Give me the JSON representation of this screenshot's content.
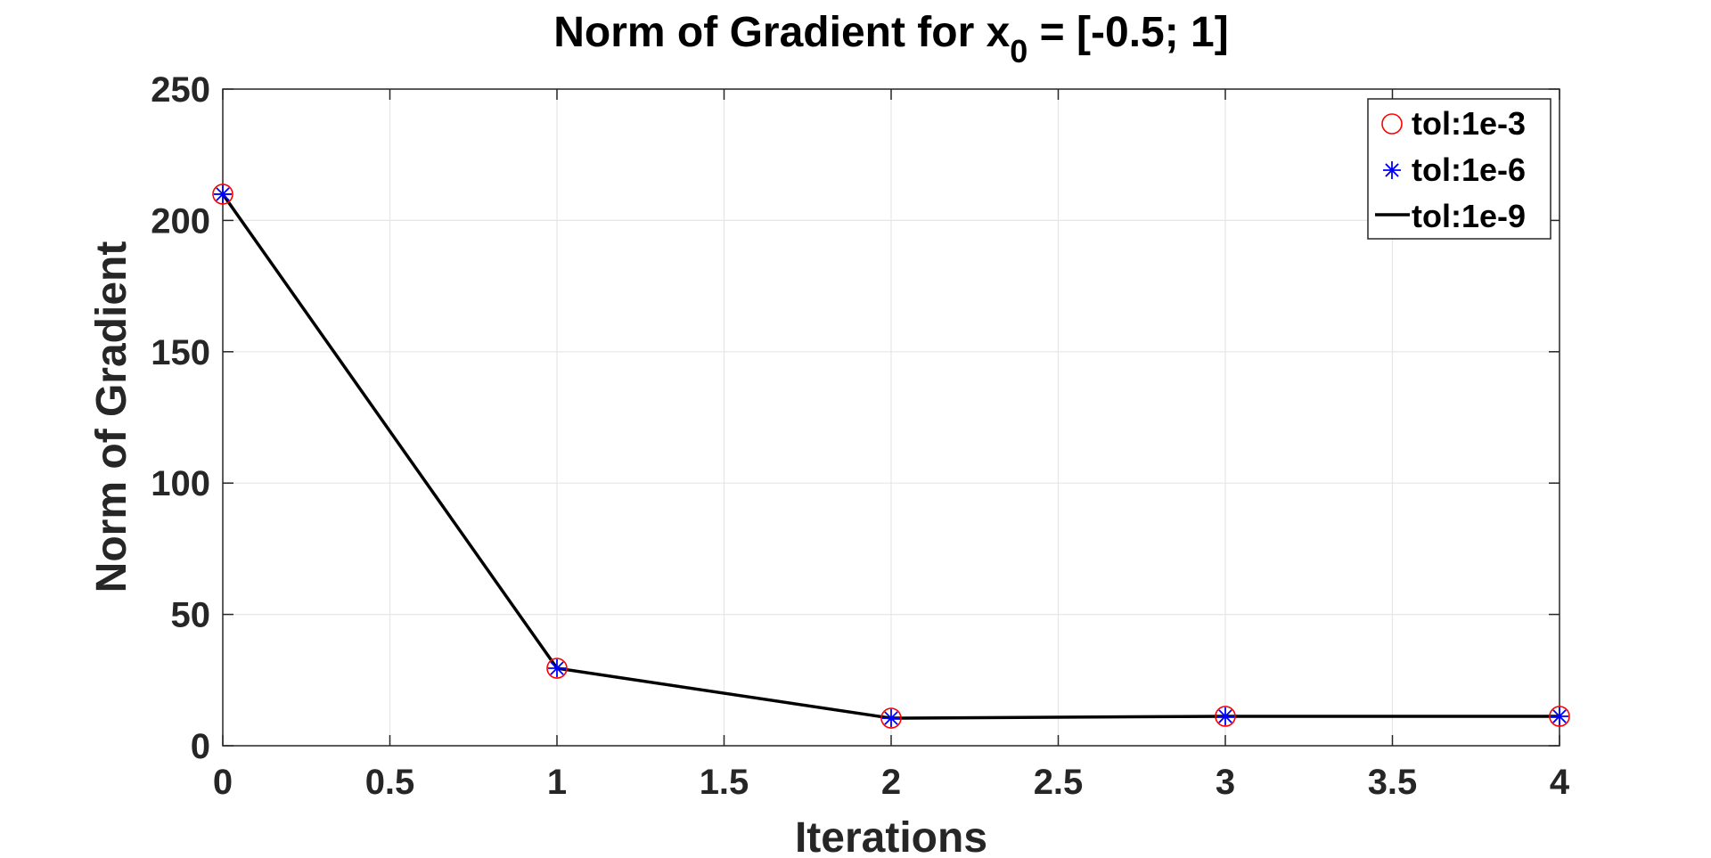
{
  "chart_data": {
    "type": "line",
    "title": {
      "prefix": "Norm of Gradient for x",
      "subscript": "0",
      "suffix": " = [-0.5; 1]"
    },
    "xlabel": "Iterations",
    "ylabel": "Norm of Gradient",
    "xlim": [
      0,
      4
    ],
    "ylim": [
      0,
      250
    ],
    "xticks": [
      0,
      0.5,
      1,
      1.5,
      2,
      2.5,
      3,
      3.5,
      4
    ],
    "xtick_labels": [
      "0",
      "0.5",
      "1",
      "1.5",
      "2",
      "2.5",
      "3",
      "3.5",
      "4"
    ],
    "yticks": [
      0,
      50,
      100,
      150,
      200,
      250
    ],
    "ytick_labels": [
      "0",
      "50",
      "100",
      "150",
      "200",
      "250"
    ],
    "grid": true,
    "legend_position": "top-right",
    "x": [
      0,
      1,
      2,
      3,
      4
    ],
    "series": [
      {
        "name": "tol:1e-3",
        "marker": "circle",
        "line": "none",
        "color": "#ff0000",
        "values": [
          210,
          29.5,
          10.5,
          11.2,
          11.2
        ]
      },
      {
        "name": "tol:1e-6",
        "marker": "asterisk",
        "line": "none",
        "color": "#0000ff",
        "values": [
          210,
          29.5,
          10.5,
          11.2,
          11.2
        ]
      },
      {
        "name": "tol:1e-9",
        "marker": "none",
        "line": "solid",
        "color": "#000000",
        "values": [
          210,
          29.5,
          10.5,
          11.2,
          11.2
        ]
      }
    ]
  }
}
